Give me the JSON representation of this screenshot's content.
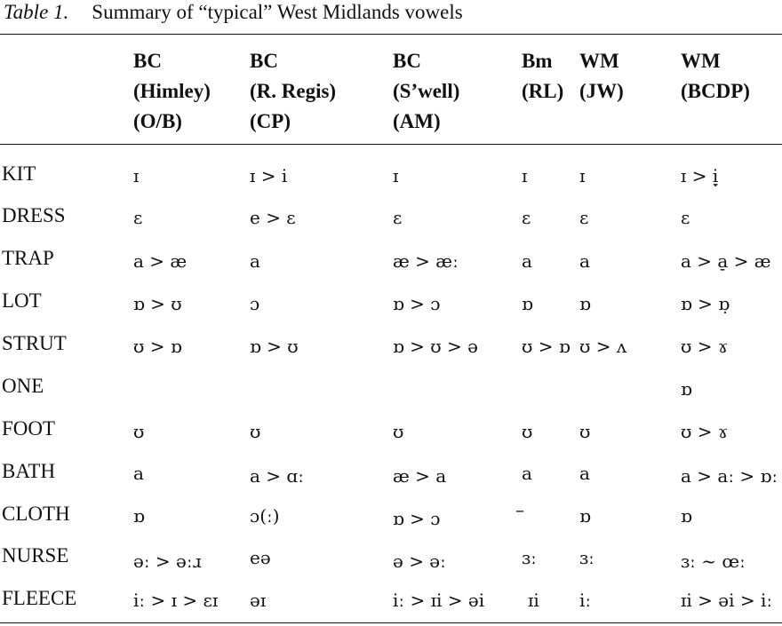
{
  "caption": {
    "label": "Table 1.",
    "title": "Summary of “typical” West Midlands vowels"
  },
  "headers": [
    [
      "BC",
      "(Himley)",
      "(O/B)"
    ],
    [
      "BC",
      "(R. Regis)",
      "(CP)"
    ],
    [
      "BC",
      "(S’well)",
      "(AM)"
    ],
    [
      "Bm",
      "(RL)"
    ],
    [
      "WM",
      "(JW)"
    ],
    [
      "WM",
      "(BCDP)"
    ]
  ],
  "rows": [
    {
      "label": "KIT",
      "cells": [
        "ɪ",
        "ɪ > i",
        "ɪ",
        "ɪ",
        "ɪ",
        "ɪ > i̞"
      ]
    },
    {
      "label": "DRESS",
      "cells": [
        "ɛ",
        "e > ɛ",
        "ɛ",
        "ɛ",
        "ɛ",
        "ɛ"
      ]
    },
    {
      "label": "TRAP",
      "cells": [
        "a > æ",
        "a",
        "æ > æː",
        "a",
        "a",
        "a > a̠ > æ"
      ]
    },
    {
      "label": "LOT",
      "cells": [
        "ɒ > ʊ",
        "ɔ",
        "ɒ > ɔ",
        "ɒ",
        "ɒ",
        "ɒ > ɒ̣"
      ]
    },
    {
      "label": "STRUT",
      "cells": [
        "ʊ > ɒ",
        "ɒ > ʊ",
        "ɒ > ʊ > ə",
        "ʊ > ɒ",
        "ʊ > ʌ",
        "ʊ > ɤ"
      ]
    },
    {
      "label": "ONE",
      "cells": [
        "",
        "",
        "",
        "",
        "",
        "ɒ"
      ]
    },
    {
      "label": "FOOT",
      "cells": [
        "ʊ",
        "ʊ",
        "ʊ",
        "ʊ",
        "ʊ",
        "ʊ > ɤ"
      ]
    },
    {
      "label": "BATH",
      "cells": [
        "a",
        "a > ɑː",
        "æ > a",
        "a",
        "a",
        "a > aː > ɒː"
      ]
    },
    {
      "label": "CLOTH",
      "cells": [
        "ɒ",
        "ɔ(ː)",
        "ɒ > ɔ",
        "–",
        "ɒ",
        "ɒ"
      ]
    },
    {
      "label": "NURSE",
      "cells": [
        "əː > əːɹ",
        "eə",
        "ə > əː",
        "ɜː",
        "ɜː",
        "ɜː ~ œː"
      ]
    },
    {
      "label": "FLEECE",
      "cells": [
        "iː > ɪ > ɛɪ",
        "əɪ",
        "iː > ɪi > əi",
        "ɪi",
        "iː",
        "ɪi > əi > iː"
      ]
    }
  ]
}
